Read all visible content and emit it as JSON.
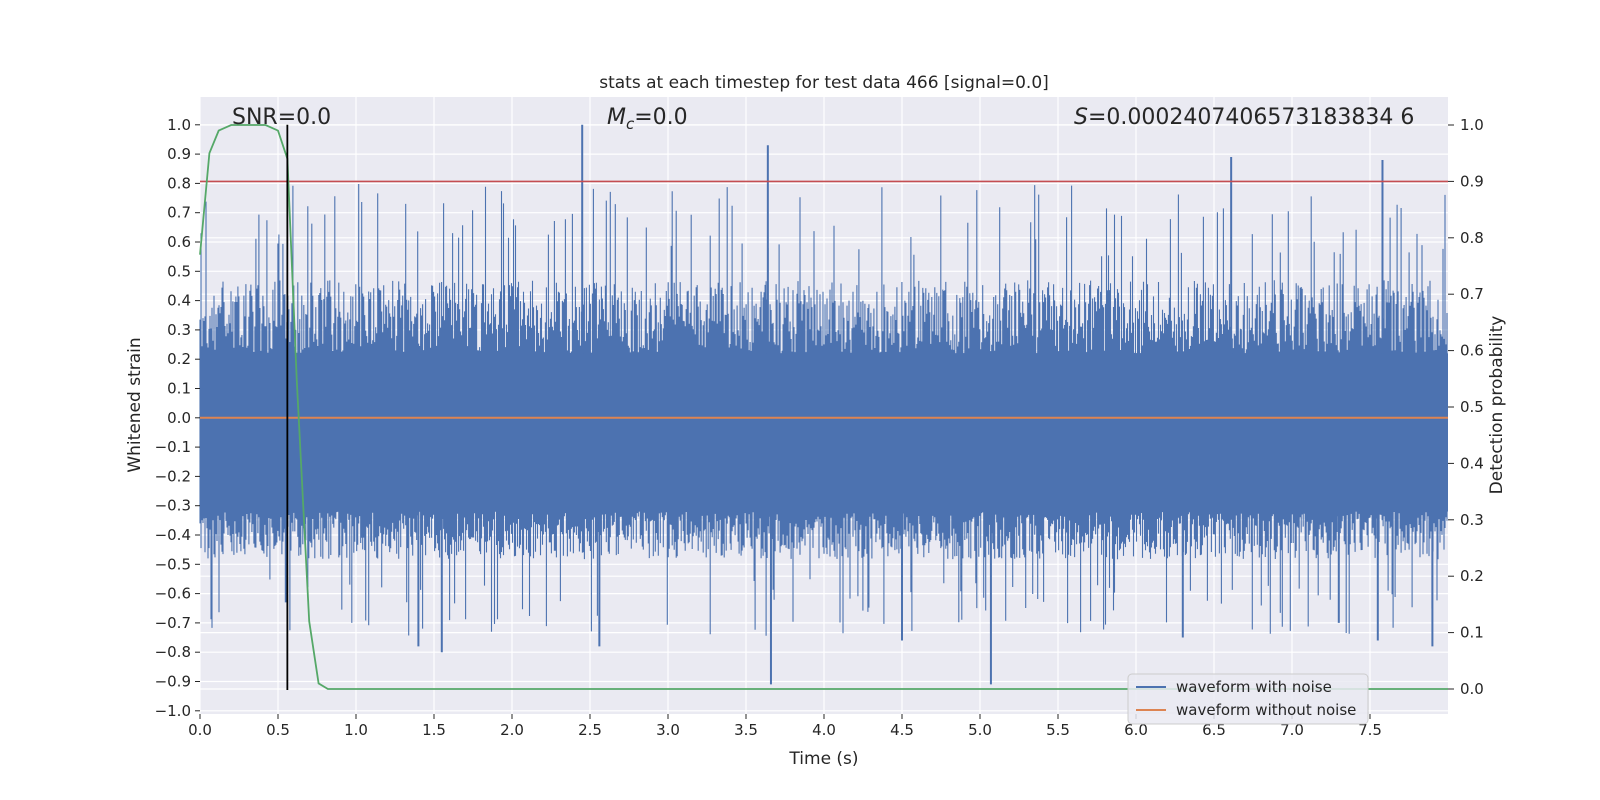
{
  "chart_data": {
    "type": "line",
    "title": "stats at each timestep for test data 466 [signal=0.0]",
    "xlabel": "Time (s)",
    "ylabel": "Whitened strain",
    "y2label": "Detection probability",
    "xlim": [
      0.0,
      8.0
    ],
    "ylim": [
      -1.0,
      1.0
    ],
    "y2lim": [
      -0.0455,
      1.0455
    ],
    "xticks": [
      "0.0",
      "0.5",
      "1.0",
      "1.5",
      "2.0",
      "2.5",
      "3.0",
      "3.5",
      "4.0",
      "4.5",
      "5.0",
      "5.5",
      "6.0",
      "6.5",
      "7.0",
      "7.5"
    ],
    "yticks": [
      "1.0",
      "0.9",
      "0.8",
      "0.7",
      "0.6",
      "0.5",
      "0.4",
      "0.3",
      "0.2",
      "0.1",
      "0.0",
      "−0.1",
      "−0.2",
      "−0.3",
      "−0.4",
      "−0.5",
      "−0.6",
      "−0.7",
      "−0.8",
      "−0.9",
      "−1.0"
    ],
    "y2ticks": [
      "1.0",
      "0.9",
      "0.8",
      "0.7",
      "0.6",
      "0.5",
      "0.4",
      "0.3",
      "0.2",
      "0.1",
      "0.0"
    ],
    "annotations": {
      "snr": "SNR=0.0",
      "mc_symbol": "M",
      "mc_sub": "c",
      "mc_value": "=0.0",
      "s_symbol": "S",
      "s_value": "=0.0002407406573183834 6"
    },
    "threshold": 0.9,
    "peak_time": 0.56,
    "series": [
      {
        "name": "waveform with noise",
        "color": "#4c72b0",
        "envelope": {
          "upper_typical": 0.42,
          "lower_typical": -0.45,
          "core_upper": 0.22,
          "core_lower": -0.32
        },
        "spikes_x": [
          2.45,
          3.64,
          6.61,
          7.58,
          0.55,
          3.66,
          5.07,
          1.4,
          1.55,
          2.56,
          4.5,
          6.3,
          7.3,
          7.55,
          7.9
        ],
        "spikes_y": [
          1.0,
          0.93,
          0.89,
          0.88,
          -0.63,
          -0.91,
          -0.91,
          -0.78,
          -0.8,
          -0.78,
          -0.76,
          -0.75,
          -0.7,
          -0.76,
          -0.78
        ]
      },
      {
        "name": "waveform without noise",
        "color": "#dd8452",
        "x": [
          0.0,
          8.0
        ],
        "y": [
          0.0,
          0.0
        ]
      },
      {
        "name": "detection probability",
        "color": "#55a868",
        "x": [
          0.0,
          0.06,
          0.12,
          0.2,
          0.3,
          0.42,
          0.5,
          0.56,
          0.62,
          0.7,
          0.76,
          0.82,
          1.0,
          2.0,
          3.0,
          4.0,
          5.0,
          6.0,
          7.0,
          8.0
        ],
        "y": [
          0.77,
          0.95,
          0.99,
          1.0,
          1.0,
          1.0,
          0.99,
          0.94,
          0.55,
          0.12,
          0.01,
          0.0,
          0.0,
          0.0,
          0.0,
          0.0,
          0.0,
          0.0,
          0.0,
          0.0
        ]
      }
    ],
    "legend": [
      "waveform with noise",
      "waveform without noise"
    ],
    "colors": {
      "axes_bg": "#eaeaf2",
      "grid": "#ffffff",
      "noise": "#4c72b0",
      "clean": "#dd8452",
      "prob": "#55a868",
      "threshold": "#c44e52",
      "vline": "#000000"
    }
  }
}
